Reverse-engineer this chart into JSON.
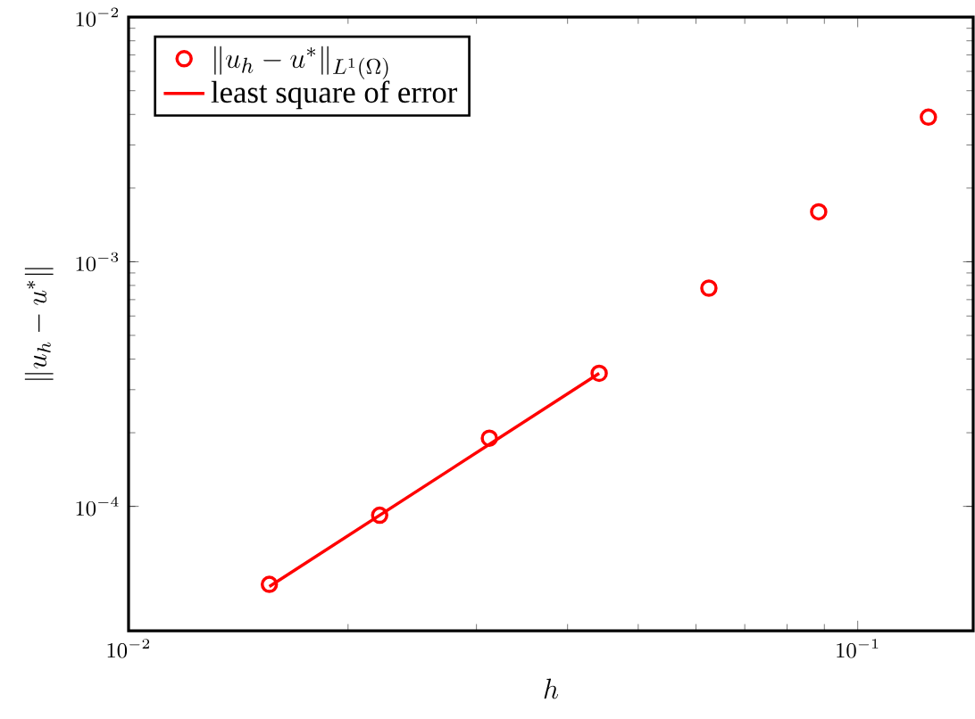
{
  "chart_data": {
    "type": "scatter",
    "xlabel": "h",
    "ylabel": "\\|u_h - u^*\\|",
    "log": "xy",
    "legend": "top left",
    "grid": false,
    "xlim": [
      0.01,
      0.144
    ],
    "ylim": [
      3.1e-05,
      0.01
    ],
    "xticks": [
      {
        "value": 0.01,
        "label": "10^{-2}"
      },
      {
        "value": 0.1,
        "label": "10^{-1}"
      }
    ],
    "yticks": [
      {
        "value": 0.0001,
        "label": "10^{-4}"
      },
      {
        "value": 0.001,
        "label": "10^{-3}"
      },
      {
        "value": 0.01,
        "label": "10^{-2}"
      }
    ],
    "series": [
      {
        "name": "\\|u_h - u^*\\|_{L^1(\\Omega)}",
        "marker": "circle",
        "color": "#ff0000",
        "x": [
          0.0156,
          0.0221,
          0.03125,
          0.0442,
          0.0625,
          0.0884,
          0.125
        ],
        "values": [
          4.8e-05,
          9.2e-05,
          0.00019,
          0.00035,
          0.00078,
          0.0016,
          0.0039
        ]
      },
      {
        "name": "least square of error",
        "type": "line",
        "marker": "none",
        "line_style": "solid",
        "color": "#ff0000",
        "x": [
          0.0156,
          0.0442
        ],
        "values": [
          4.7e-05,
          0.00035
        ]
      }
    ]
  }
}
